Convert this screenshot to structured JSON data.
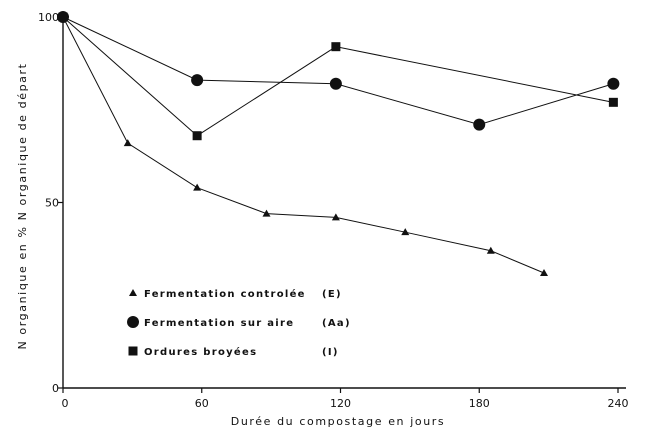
{
  "chart_data": {
    "type": "line",
    "xlabel": "Durée du compostage en jours",
    "ylabel": "N organique en % N organique de départ",
    "xlim": [
      0,
      240
    ],
    "ylim": [
      0,
      100
    ],
    "x_ticks": [
      "0",
      "60",
      "120",
      "180",
      "240"
    ],
    "y_ticks": [
      "0",
      "50",
      "100"
    ],
    "grid": false,
    "legend_position": "bottom-left",
    "series": [
      {
        "name": "Fermentation controlée",
        "code": "(E)",
        "marker": "triangle",
        "x": [
          0,
          28,
          58,
          88,
          118,
          148,
          185,
          208
        ],
        "y": [
          100,
          66,
          54,
          47,
          46,
          42,
          37,
          31
        ]
      },
      {
        "name": "Fermentation sur aire",
        "code": "(Aa)",
        "marker": "circle",
        "x": [
          0,
          58,
          118,
          180,
          238
        ],
        "y": [
          100,
          83,
          82,
          71,
          82
        ]
      },
      {
        "name": "Ordures broyées",
        "code": "(I)",
        "marker": "square",
        "x": [
          0,
          58,
          118,
          238
        ],
        "y": [
          100,
          68,
          92,
          77
        ]
      }
    ]
  }
}
